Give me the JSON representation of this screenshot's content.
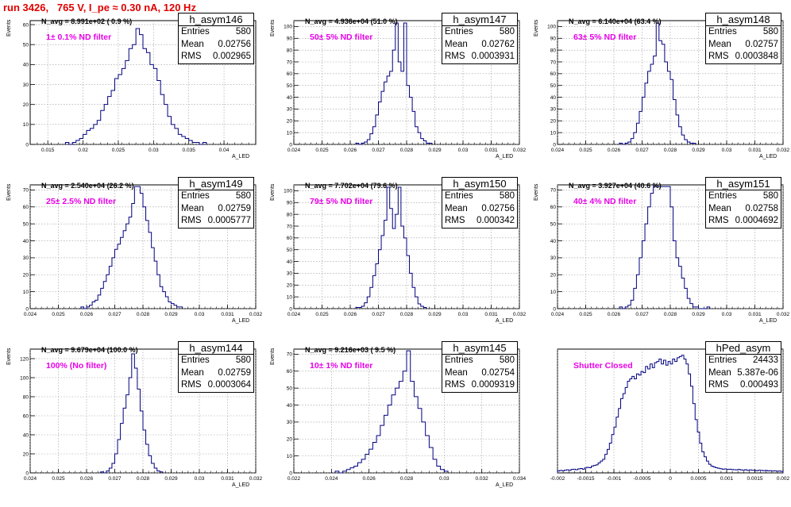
{
  "run_title": "run 3426,   765 V, I_pe ≈ 0.30 nA, 120 Hz",
  "colors": {
    "histogram": "#000080",
    "grid": "#9a9a9a",
    "title": "#e00000",
    "filter_label": "#e800e8"
  },
  "chart_data": [
    {
      "type": "bar",
      "subtype": "histogram-step",
      "name": "h_asym146",
      "entries": "580",
      "mean": "0.02756",
      "rms": "0.002965",
      "n_avg_label": "N_avg = 8.991e+02 ( 0.9 %)",
      "filter_label": "1± 0.1% ND filter",
      "xlabel": "A_LED",
      "ylabel": "Events",
      "xlim": [
        0.0125,
        0.0445
      ],
      "ylim": [
        0,
        62
      ],
      "xticks": [
        0.015,
        0.02,
        0.025,
        0.03,
        0.035,
        0.04
      ],
      "xtick_labels": [
        "0.015",
        "0.02",
        "0.025",
        "0.03",
        "0.035",
        "0.04"
      ],
      "yticks": [
        0,
        10,
        20,
        30,
        40,
        50,
        60
      ],
      "bin_width": 0.0005,
      "x": [
        0.0175,
        0.018,
        0.0185,
        0.019,
        0.0195,
        0.02,
        0.0205,
        0.021,
        0.0215,
        0.022,
        0.0225,
        0.023,
        0.0235,
        0.024,
        0.0245,
        0.025,
        0.0255,
        0.026,
        0.0265,
        0.027,
        0.0275,
        0.028,
        0.0285,
        0.029,
        0.0295,
        0.03,
        0.0305,
        0.031,
        0.0315,
        0.032,
        0.0325,
        0.033,
        0.0335,
        0.034,
        0.0345,
        0.035,
        0.0355,
        0.036,
        0.0365,
        0.037
      ],
      "values": [
        1,
        0,
        1,
        2,
        3,
        5,
        7,
        8,
        10,
        12,
        17,
        20,
        24,
        27,
        33,
        35,
        38,
        42,
        48,
        50,
        58,
        55,
        48,
        46,
        40,
        38,
        32,
        25,
        20,
        14,
        10,
        8,
        5,
        4,
        3,
        2,
        1,
        1,
        0,
        1
      ]
    },
    {
      "type": "bar",
      "subtype": "histogram-step",
      "name": "h_asym147",
      "entries": "580",
      "mean": "0.02762",
      "rms": "0.0003931",
      "n_avg_label": "N_avg = 4.936e+04 (51.0 %)",
      "filter_label": "50± 5% ND filter",
      "xlabel": "A_LED",
      "ylabel": "Events",
      "xlim": [
        0.024,
        0.032
      ],
      "ylim": [
        0,
        105
      ],
      "xticks": [
        0.024,
        0.025,
        0.026,
        0.027,
        0.028,
        0.029,
        0.03,
        0.031,
        0.032
      ],
      "xtick_labels": [
        "0.024",
        "0.025",
        "0.026",
        "0.027",
        "0.028",
        "0.029",
        "0.03",
        "0.031",
        "0.032"
      ],
      "yticks": [
        0,
        10,
        20,
        30,
        40,
        50,
        60,
        70,
        80,
        90,
        100
      ],
      "bin_width": 0.0001,
      "x": [
        0.0262,
        0.0263,
        0.0264,
        0.0265,
        0.0266,
        0.0267,
        0.0268,
        0.0269,
        0.027,
        0.0271,
        0.0272,
        0.0273,
        0.0274,
        0.0275,
        0.0276,
        0.0277,
        0.0278,
        0.0279,
        0.028,
        0.0281,
        0.0282,
        0.0283,
        0.0284,
        0.0285,
        0.0286,
        0.0287,
        0.0288
      ],
      "values": [
        1,
        0,
        1,
        2,
        4,
        9,
        15,
        25,
        36,
        45,
        53,
        58,
        62,
        80,
        103,
        70,
        62,
        103,
        50,
        40,
        28,
        15,
        10,
        5,
        3,
        1,
        1
      ]
    },
    {
      "type": "bar",
      "subtype": "histogram-step",
      "name": "h_asym148",
      "entries": "580",
      "mean": "0.02757",
      "rms": "0.0003848",
      "n_avg_label": "N_avg = 6.140e+04 (63.4 %)",
      "filter_label": "63± 5% ND filter",
      "xlabel": "A_LED",
      "ylabel": "Events",
      "xlim": [
        0.024,
        0.032
      ],
      "ylim": [
        0,
        105
      ],
      "xticks": [
        0.024,
        0.025,
        0.026,
        0.027,
        0.028,
        0.029,
        0.03,
        0.031,
        0.032
      ],
      "xtick_labels": [
        "0.024",
        "0.025",
        "0.026",
        "0.027",
        "0.028",
        "0.029",
        "0.03",
        "0.031",
        "0.032"
      ],
      "yticks": [
        0,
        10,
        20,
        30,
        40,
        50,
        60,
        70,
        80,
        90,
        100
      ],
      "bin_width": 0.0001,
      "x": [
        0.0262,
        0.0263,
        0.0264,
        0.0265,
        0.0266,
        0.0267,
        0.0268,
        0.0269,
        0.027,
        0.0271,
        0.0272,
        0.0273,
        0.0274,
        0.0275,
        0.0276,
        0.0277,
        0.0278,
        0.0279,
        0.028,
        0.0281,
        0.0282,
        0.0283,
        0.0284,
        0.0285,
        0.0286,
        0.0287,
        0.0288
      ],
      "values": [
        1,
        0,
        1,
        2,
        5,
        10,
        18,
        28,
        40,
        52,
        62,
        68,
        75,
        103,
        88,
        85,
        70,
        62,
        55,
        38,
        25,
        15,
        8,
        4,
        2,
        1,
        1
      ]
    },
    {
      "type": "bar",
      "subtype": "histogram-step",
      "name": "h_asym149",
      "entries": "580",
      "mean": "0.02759",
      "rms": "0.0005777",
      "n_avg_label": "N_avg = 2.540e+04 (26.2 %)",
      "filter_label": "25± 2.5% ND filter",
      "xlabel": "A_LED",
      "ylabel": "Events",
      "xlim": [
        0.024,
        0.032
      ],
      "ylim": [
        0,
        73
      ],
      "xticks": [
        0.024,
        0.025,
        0.026,
        0.027,
        0.028,
        0.029,
        0.03,
        0.031,
        0.032
      ],
      "xtick_labels": [
        "0.024",
        "0.025",
        "0.026",
        "0.027",
        "0.028",
        "0.029",
        "0.03",
        "0.031",
        "0.032"
      ],
      "yticks": [
        0,
        10,
        20,
        30,
        40,
        50,
        60,
        70
      ],
      "bin_width": 0.0001,
      "x": [
        0.0258,
        0.0259,
        0.026,
        0.0261,
        0.0262,
        0.0263,
        0.0264,
        0.0265,
        0.0266,
        0.0267,
        0.0268,
        0.0269,
        0.027,
        0.0271,
        0.0272,
        0.0273,
        0.0274,
        0.0275,
        0.0276,
        0.0277,
        0.0278,
        0.0279,
        0.028,
        0.0281,
        0.0282,
        0.0283,
        0.0284,
        0.0285,
        0.0286,
        0.0287,
        0.0288,
        0.0289,
        0.029,
        0.0291,
        0.0292,
        0.0293
      ],
      "values": [
        1,
        0,
        1,
        2,
        4,
        5,
        8,
        12,
        16,
        20,
        25,
        30,
        35,
        38,
        42,
        46,
        50,
        54,
        62,
        72,
        72,
        68,
        60,
        52,
        45,
        36,
        28,
        20,
        13,
        10,
        7,
        4,
        3,
        2,
        1,
        1
      ]
    },
    {
      "type": "bar",
      "subtype": "histogram-step",
      "name": "h_asym150",
      "entries": "580",
      "mean": "0.02756",
      "rms": "0.000342",
      "n_avg_label": "N_avg = 7.702e+04 (79.6 %)",
      "filter_label": "79± 5% ND filter",
      "xlabel": "A_LED",
      "ylabel": "Events",
      "xlim": [
        0.024,
        0.032
      ],
      "ylim": [
        0,
        105
      ],
      "xticks": [
        0.024,
        0.025,
        0.026,
        0.027,
        0.028,
        0.029,
        0.03,
        0.031,
        0.032
      ],
      "xtick_labels": [
        "0.024",
        "0.025",
        "0.026",
        "0.027",
        "0.028",
        "0.029",
        "0.03",
        "0.031",
        "0.032"
      ],
      "yticks": [
        0,
        10,
        20,
        30,
        40,
        50,
        60,
        70,
        80,
        90,
        100
      ],
      "bin_width": 0.0001,
      "x": [
        0.0262,
        0.0263,
        0.0264,
        0.0265,
        0.0266,
        0.0267,
        0.0268,
        0.0269,
        0.027,
        0.0271,
        0.0272,
        0.0273,
        0.0274,
        0.0275,
        0.0276,
        0.0277,
        0.0278,
        0.0279,
        0.028,
        0.0281,
        0.0282,
        0.0283,
        0.0284,
        0.0285,
        0.0286
      ],
      "values": [
        1,
        1,
        2,
        5,
        10,
        18,
        28,
        38,
        50,
        62,
        75,
        103,
        85,
        68,
        80,
        103,
        70,
        60,
        45,
        30,
        18,
        10,
        4,
        2,
        1
      ]
    },
    {
      "type": "bar",
      "subtype": "histogram-step",
      "name": "h_asym151",
      "entries": "580",
      "mean": "0.02758",
      "rms": "0.0004692",
      "n_avg_label": "N_avg = 3.927e+04 (40.6 %)",
      "filter_label": "40± 4% ND filter",
      "xlabel": "A_LED",
      "ylabel": "Events",
      "xlim": [
        0.024,
        0.032
      ],
      "ylim": [
        0,
        73
      ],
      "xticks": [
        0.024,
        0.025,
        0.026,
        0.027,
        0.028,
        0.029,
        0.03,
        0.031,
        0.032
      ],
      "xtick_labels": [
        "0.024",
        "0.025",
        "0.026",
        "0.027",
        "0.028",
        "0.029",
        "0.03",
        "0.031",
        "0.032"
      ],
      "yticks": [
        0,
        10,
        20,
        30,
        40,
        50,
        60,
        70
      ],
      "bin_width": 0.0001,
      "x": [
        0.0262,
        0.0263,
        0.0264,
        0.0265,
        0.0266,
        0.0267,
        0.0268,
        0.0269,
        0.027,
        0.0271,
        0.0272,
        0.0273,
        0.0274,
        0.0275,
        0.0276,
        0.0277,
        0.0278,
        0.0279,
        0.028,
        0.0281,
        0.0282,
        0.0283,
        0.0284,
        0.0285,
        0.0286,
        0.0287,
        0.0288,
        0.0289,
        0.029,
        0.0291,
        0.0292,
        0.0293
      ],
      "values": [
        1,
        0,
        1,
        2,
        5,
        12,
        20,
        30,
        40,
        50,
        60,
        68,
        72,
        72,
        72,
        72,
        72,
        72,
        60,
        40,
        30,
        25,
        18,
        12,
        6,
        3,
        1,
        1,
        0,
        0,
        0,
        1
      ]
    },
    {
      "type": "bar",
      "subtype": "histogram-step",
      "name": "h_asym144",
      "entries": "580",
      "mean": "0.02759",
      "rms": "0.0003064",
      "n_avg_label": "N_avg = 9.679e+04 (100.0 %)",
      "filter_label": "100% (No filter)",
      "xlabel": "A_LED",
      "ylabel": "Events",
      "xlim": [
        0.024,
        0.032
      ],
      "ylim": [
        0,
        130
      ],
      "xticks": [
        0.024,
        0.025,
        0.026,
        0.027,
        0.028,
        0.029,
        0.03,
        0.031,
        0.032
      ],
      "xtick_labels": [
        "0.024",
        "0.025",
        "0.026",
        "0.027",
        "0.028",
        "0.029",
        "0.03",
        "0.031",
        "0.032"
      ],
      "yticks": [
        0,
        20,
        40,
        60,
        80,
        100,
        120
      ],
      "bin_width": 0.0001,
      "x": [
        0.0265,
        0.0266,
        0.0267,
        0.0268,
        0.0269,
        0.027,
        0.0271,
        0.0272,
        0.0273,
        0.0274,
        0.0275,
        0.0276,
        0.0277,
        0.0278,
        0.0279,
        0.028,
        0.0281,
        0.0282,
        0.0283,
        0.0284,
        0.0285,
        0.0286
      ],
      "values": [
        1,
        0,
        2,
        5,
        10,
        20,
        35,
        52,
        68,
        82,
        100,
        125,
        110,
        88,
        65,
        45,
        30,
        18,
        10,
        5,
        2,
        1
      ]
    },
    {
      "type": "bar",
      "subtype": "histogram-step",
      "name": "h_asym145",
      "entries": "580",
      "mean": "0.02754",
      "rms": "0.0009319",
      "n_avg_label": "N_avg = 9.216e+03 ( 9.5 %)",
      "filter_label": "10± 1% ND filter",
      "xlabel": "A_LED",
      "ylabel": "Events",
      "xlim": [
        0.022,
        0.034
      ],
      "ylim": [
        0,
        73
      ],
      "xticks": [
        0.022,
        0.024,
        0.026,
        0.028,
        0.03,
        0.032,
        0.034
      ],
      "xtick_labels": [
        "0.022",
        "0.024",
        "0.026",
        "0.028",
        "0.03",
        "0.032",
        "0.034"
      ],
      "yticks": [
        0,
        10,
        20,
        30,
        40,
        50,
        60,
        70
      ],
      "bin_width": 0.0002,
      "x": [
        0.0242,
        0.0244,
        0.0246,
        0.0248,
        0.025,
        0.0252,
        0.0254,
        0.0256,
        0.0258,
        0.026,
        0.0262,
        0.0264,
        0.0266,
        0.0268,
        0.027,
        0.0272,
        0.0274,
        0.0276,
        0.0278,
        0.028,
        0.0282,
        0.0284,
        0.0286,
        0.0288,
        0.029,
        0.0292,
        0.0294,
        0.0296,
        0.0298,
        0.03
      ],
      "values": [
        1,
        0,
        1,
        2,
        3,
        4,
        6,
        8,
        11,
        14,
        18,
        22,
        28,
        34,
        40,
        46,
        50,
        54,
        60,
        72,
        54,
        45,
        38,
        30,
        22,
        15,
        8,
        4,
        2,
        1
      ]
    },
    {
      "type": "bar",
      "subtype": "histogram-step",
      "name": "hPed_asym",
      "entries": "24433",
      "mean": "5.387e-06",
      "rms": "0.000493",
      "n_avg_label": "",
      "filter_label": "Shutter Closed",
      "xlabel": "",
      "ylabel": "",
      "xlim": [
        -0.002,
        0.002
      ],
      "ylim": [
        0,
        1000
      ],
      "xticks": [
        -0.002,
        -0.0015,
        -0.001,
        -0.0005,
        0,
        0.0005,
        0.001,
        0.0015,
        0.002
      ],
      "xtick_labels": [
        "-0.002",
        "-0.0015",
        "-0.001",
        "-0.0005",
        "0",
        "0.0005",
        "0.001",
        "0.0015",
        "0.002"
      ],
      "yticks": [],
      "bin_width": 4e-05,
      "x": [
        -0.002,
        -0.00196,
        -0.00192,
        -0.00188,
        -0.00184,
        -0.0018,
        -0.00176,
        -0.00172,
        -0.00168,
        -0.00164,
        -0.0016,
        -0.00156,
        -0.00152,
        -0.00148,
        -0.00144,
        -0.0014,
        -0.00136,
        -0.00132,
        -0.00128,
        -0.00124,
        -0.0012,
        -0.00116,
        -0.00112,
        -0.00108,
        -0.00104,
        -0.001,
        -0.00096,
        -0.00092,
        -0.00088,
        -0.00084,
        -0.0008,
        -0.00076,
        -0.00072,
        -0.00068,
        -0.00064,
        -0.0006,
        -0.00056,
        -0.00052,
        -0.00048,
        -0.00044,
        -0.0004,
        -0.00036,
        -0.00032,
        -0.00028,
        -0.00024,
        -0.0002,
        -0.00016,
        -0.00012,
        -8e-05,
        -4e-05,
        0,
        4e-05,
        8e-05,
        0.00012,
        0.00016,
        0.0002,
        0.00024,
        0.00028,
        0.00032,
        0.00036,
        0.0004,
        0.00044,
        0.00048,
        0.00052,
        0.00056,
        0.0006,
        0.00064,
        0.00068,
        0.00072,
        0.00076,
        0.0008,
        0.00084,
        0.00088,
        0.00092,
        0.00096,
        0.001,
        0.00104,
        0.00108,
        0.00112,
        0.00116,
        0.0012,
        0.00124,
        0.00128,
        0.00132,
        0.00136,
        0.0014,
        0.00144,
        0.00148,
        0.00152,
        0.00156,
        0.0016,
        0.00164,
        0.00168,
        0.00172,
        0.00176,
        0.0018,
        0.00184,
        0.00188,
        0.00192,
        0.00196
      ],
      "values": [
        15,
        20,
        18,
        22,
        25,
        20,
        28,
        30,
        26,
        32,
        35,
        30,
        40,
        45,
        42,
        55,
        60,
        65,
        80,
        95,
        110,
        150,
        190,
        240,
        310,
        370,
        450,
        520,
        600,
        640,
        690,
        740,
        760,
        780,
        760,
        800,
        790,
        820,
        810,
        860,
        840,
        880,
        850,
        890,
        900,
        920,
        880,
        910,
        870,
        900,
        880,
        920,
        900,
        930,
        940,
        950,
        920,
        880,
        800,
        700,
        560,
        430,
        330,
        240,
        170,
        130,
        95,
        70,
        55,
        48,
        42,
        38,
        34,
        30,
        32,
        28,
        30,
        27,
        26,
        25,
        28,
        24,
        22,
        26,
        20,
        24,
        22,
        20,
        18,
        22,
        20,
        18,
        20,
        16,
        18,
        15,
        17,
        14,
        15,
        12
      ]
    }
  ]
}
